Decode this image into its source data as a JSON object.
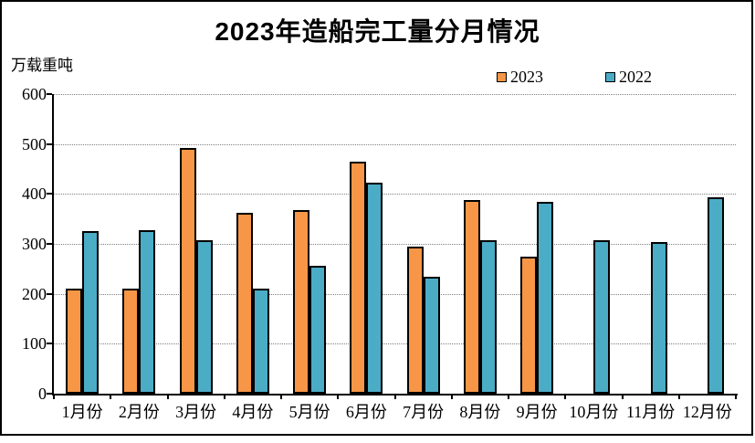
{
  "title": "2023年造船完工量分月情况",
  "y_axis_unit": "万载重吨",
  "legend": {
    "items": [
      {
        "label": "2023",
        "color": "#F79646"
      },
      {
        "label": "2022",
        "color": "#4BACC6"
      }
    ]
  },
  "colors": {
    "bar_2023": "#F79646",
    "bar_2022": "#4BACC6",
    "bar_border": "#000000",
    "gridline": "#7F7F7F",
    "axis": "#000000",
    "frame_border": "#000000",
    "background": "#FFFFFF"
  },
  "chart_data": {
    "type": "bar",
    "title": "2023年造船完工量分月情况",
    "xlabel": "",
    "ylabel": "万载重吨",
    "ylim": [
      0,
      600
    ],
    "yticks": [
      0,
      100,
      200,
      300,
      400,
      500,
      600
    ],
    "grid": "horizontal-dotted",
    "legend_position": "top",
    "categories": [
      "1月份",
      "2月份",
      "3月份",
      "4月份",
      "5月份",
      "6月份",
      "7月份",
      "8月份",
      "9月份",
      "10月份",
      "11月份",
      "12月份"
    ],
    "series": [
      {
        "name": "2023",
        "color": "#F79646",
        "values": [
          210,
          211,
          492,
          363,
          367,
          464,
          295,
          388,
          275,
          null,
          null,
          null
        ]
      },
      {
        "name": "2022",
        "color": "#4BACC6",
        "values": [
          326,
          327,
          308,
          210,
          257,
          422,
          235,
          308,
          384,
          308,
          304,
          394
        ]
      }
    ]
  }
}
